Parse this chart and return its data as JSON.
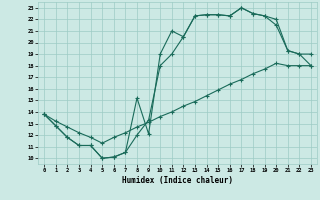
{
  "xlabel": "Humidex (Indice chaleur)",
  "xlim": [
    -0.5,
    23.5
  ],
  "ylim": [
    9.5,
    23.5
  ],
  "xticks": [
    0,
    1,
    2,
    3,
    4,
    5,
    6,
    7,
    8,
    9,
    10,
    11,
    12,
    13,
    14,
    15,
    16,
    17,
    18,
    19,
    20,
    21,
    22,
    23
  ],
  "yticks": [
    10,
    11,
    12,
    13,
    14,
    15,
    16,
    17,
    18,
    19,
    20,
    21,
    22,
    23
  ],
  "bg_color": "#cce9e4",
  "grid_color": "#9dccc5",
  "line_color": "#1a6b5a",
  "line1_x": [
    0,
    1,
    2,
    3,
    4,
    5,
    6,
    7,
    8,
    9,
    10,
    11,
    12,
    13,
    14,
    15,
    16,
    17,
    18,
    19,
    20,
    21,
    22,
    23
  ],
  "line1_y": [
    13.8,
    12.8,
    11.8,
    11.1,
    11.1,
    10.0,
    10.1,
    10.5,
    12.0,
    13.3,
    18.0,
    19.0,
    20.5,
    22.3,
    22.4,
    22.4,
    22.3,
    23.0,
    22.5,
    22.3,
    22.0,
    19.3,
    19.0,
    19.0
  ],
  "line2_x": [
    0,
    1,
    2,
    3,
    4,
    5,
    6,
    7,
    8,
    9,
    10,
    11,
    12,
    13,
    14,
    15,
    16,
    17,
    18,
    19,
    20,
    21,
    22,
    23
  ],
  "line2_y": [
    13.8,
    12.8,
    11.8,
    11.1,
    11.1,
    10.0,
    10.1,
    10.5,
    15.2,
    12.1,
    19.0,
    21.0,
    20.5,
    22.3,
    22.4,
    22.4,
    22.3,
    23.0,
    22.5,
    22.3,
    21.5,
    19.3,
    19.0,
    18.0
  ],
  "line3_x": [
    0,
    1,
    2,
    3,
    4,
    5,
    6,
    7,
    8,
    9,
    10,
    11,
    12,
    13,
    14,
    15,
    16,
    17,
    18,
    19,
    20,
    21,
    22,
    23
  ],
  "line3_y": [
    13.8,
    13.2,
    12.7,
    12.2,
    11.8,
    11.3,
    11.8,
    12.2,
    12.7,
    13.1,
    13.6,
    14.0,
    14.5,
    14.9,
    15.4,
    15.9,
    16.4,
    16.8,
    17.3,
    17.7,
    18.2,
    18.0,
    18.0,
    18.0
  ]
}
